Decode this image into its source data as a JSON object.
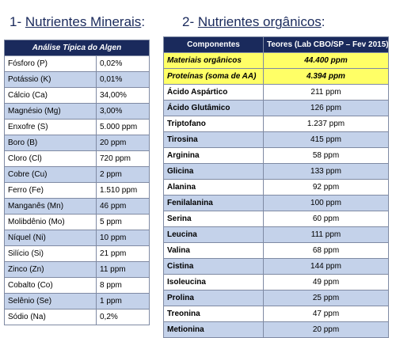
{
  "section1": {
    "number": "1-",
    "title": "Nutrientes Minerais",
    "suffix": ":"
  },
  "section2": {
    "number": "2-",
    "title": "Nutrientes orgânicos",
    "suffix": ":"
  },
  "minerals": {
    "header": "Análise Típica do Algen",
    "rows": [
      {
        "name": "Fósforo (P)",
        "value": "0,02%"
      },
      {
        "name": "Potássio (K)",
        "value": "0,01%"
      },
      {
        "name": "Cálcio (Ca)",
        "value": "34,00%"
      },
      {
        "name": "Magnésio (Mg)",
        "value": "3,00%"
      },
      {
        "name": "Enxofre (S)",
        "value": "5.000 ppm"
      },
      {
        "name": "Boro (B)",
        "value": "20 ppm"
      },
      {
        "name": "Cloro (Cl)",
        "value": "720 ppm"
      },
      {
        "name": "Cobre (Cu)",
        "value": "2 ppm"
      },
      {
        "name": "Ferro (Fe)",
        "value": "1.510 ppm"
      },
      {
        "name": "Manganês (Mn)",
        "value": "46 ppm"
      },
      {
        "name": "Molibdênio (Mo)",
        "value": "5 ppm"
      },
      {
        "name": "Níquel (Ni)",
        "value": "10 ppm"
      },
      {
        "name": "Silício (Si)",
        "value": "21 ppm"
      },
      {
        "name": "Zinco (Zn)",
        "value": "11 ppm"
      },
      {
        "name": "Cobalto (Co)",
        "value": "8 ppm"
      },
      {
        "name": "Selênio (Se)",
        "value": "1 ppm"
      },
      {
        "name": "Sódio (Na)",
        "value": "0,2%"
      }
    ]
  },
  "organics": {
    "header_component": "Componentes",
    "header_value": "Teores (Lab CBO/SP – Fev 2015)",
    "highlight_rows": [
      {
        "name": "Materiais orgânicos",
        "value": "44.400 ppm"
      },
      {
        "name": "Proteínas (soma de AA)",
        "value": "4.394 ppm"
      }
    ],
    "rows": [
      {
        "name": "Ácido Aspártico",
        "value": "211 ppm"
      },
      {
        "name": "Ácido Glutâmico",
        "value": "126 ppm"
      },
      {
        "name": "Triptofano",
        "value": "1.237 ppm"
      },
      {
        "name": "Tirosina",
        "value": "415 ppm"
      },
      {
        "name": "Arginina",
        "value": "58 ppm"
      },
      {
        "name": "Glicina",
        "value": "133 ppm"
      },
      {
        "name": "Alanina",
        "value": "92 ppm"
      },
      {
        "name": "Fenilalanina",
        "value": "100 ppm"
      },
      {
        "name": "Serina",
        "value": "60 ppm"
      },
      {
        "name": "Leucina",
        "value": "111 ppm"
      },
      {
        "name": "Valina",
        "value": "68 ppm"
      },
      {
        "name": "Cistina",
        "value": "144 ppm"
      },
      {
        "name": "Isoleucina",
        "value": "49 ppm"
      },
      {
        "name": "Prolina",
        "value": "25 ppm"
      },
      {
        "name": "Treonina",
        "value": "47 ppm"
      },
      {
        "name": "Metionina",
        "value": "20 ppm"
      }
    ]
  },
  "colors": {
    "header_bg": "#1a2a5c",
    "row_alt": "#c4d2ea",
    "highlight": "#ffff66",
    "title": "#1a2a5c"
  }
}
